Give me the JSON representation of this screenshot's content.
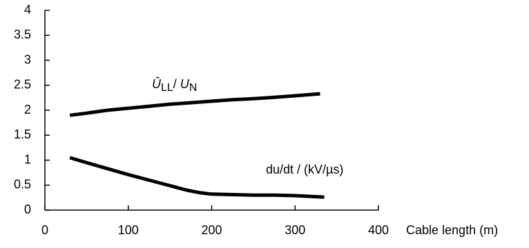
{
  "chart_data": {
    "type": "line",
    "title": "",
    "xlabel": "Cable length (m)",
    "ylabel": "",
    "xlim": [
      0,
      400
    ],
    "ylim": [
      0,
      4
    ],
    "x_ticks": [
      "0",
      "100",
      "200",
      "300",
      "400"
    ],
    "y_ticks": [
      "0",
      "0.5",
      "1",
      "1.5",
      "2",
      "2.5",
      "3",
      "3.5",
      "4"
    ],
    "grid": false,
    "legend": "none",
    "series": [
      {
        "label_parts": {
          "main_symbol": "Û",
          "main_subscript": "LL",
          "separator": "/ ",
          "denom_symbol": "U",
          "denom_subscript": "N"
        },
        "color": "#000000",
        "x": [
          30,
          50,
          75,
          100,
          125,
          150,
          175,
          200,
          225,
          250,
          275,
          300,
          330
        ],
        "y": [
          1.9,
          1.94,
          2.0,
          2.04,
          2.08,
          2.12,
          2.15,
          2.18,
          2.21,
          2.23,
          2.26,
          2.29,
          2.33
        ]
      },
      {
        "label": "du/dt / (kV/µs)",
        "color": "#000000",
        "x": [
          30,
          50,
          75,
          100,
          125,
          150,
          170,
          185,
          200,
          225,
          250,
          275,
          300,
          335
        ],
        "y": [
          1.05,
          0.95,
          0.83,
          0.71,
          0.6,
          0.49,
          0.4,
          0.35,
          0.32,
          0.31,
          0.3,
          0.3,
          0.29,
          0.26
        ]
      }
    ]
  }
}
